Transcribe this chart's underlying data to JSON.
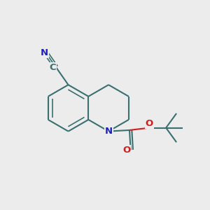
{
  "bg_color": "#ececec",
  "bc": "#3a7070",
  "nc": "#2020bb",
  "oc": "#cc2020",
  "lw": 1.5,
  "thin_lw": 1.2,
  "r": 0.38,
  "lhx": 0.0,
  "lhy": 0.0,
  "fs": 9.5,
  "xlim": [
    -1.1,
    2.3
  ],
  "ylim": [
    -1.5,
    1.6
  ]
}
